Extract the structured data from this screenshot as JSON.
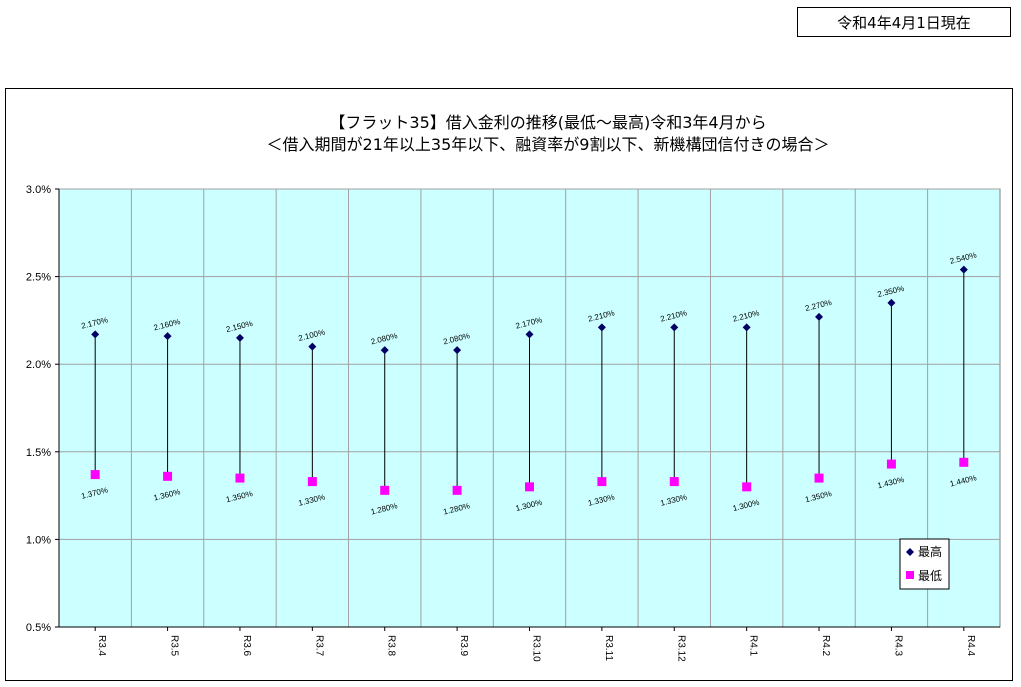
{
  "report_date": "令和4年4月1日現在",
  "chart_data": {
    "type": "scatter",
    "title_line1": "【フラット35】借入金利の推移(最低～最高)令和3年4月から",
    "title_line2": "＜借入期間が21年以上35年以下、融資率が9割以下、新機構団信付きの場合＞",
    "categories": [
      "R3.4",
      "R3.5",
      "R3.6",
      "R3.7",
      "R3.8",
      "R3.9",
      "R3.10",
      "R3.11",
      "R3.12",
      "R4.1",
      "R4.2",
      "R4.3",
      "R4.4"
    ],
    "series": [
      {
        "name": "最高",
        "color": "#000066",
        "marker": "diamond",
        "values": [
          2.17,
          2.16,
          2.15,
          2.1,
          2.08,
          2.08,
          2.17,
          2.21,
          2.21,
          2.21,
          2.27,
          2.35,
          2.54
        ],
        "labels": [
          "2.170%",
          "2.160%",
          "2.150%",
          "2.100%",
          "2.080%",
          "2.080%",
          "2.170%",
          "2.210%",
          "2.210%",
          "2.210%",
          "2.270%",
          "2.350%",
          "2.540%"
        ]
      },
      {
        "name": "最低",
        "color": "#ff00ff",
        "marker": "square",
        "values": [
          1.37,
          1.36,
          1.35,
          1.33,
          1.28,
          1.28,
          1.3,
          1.33,
          1.33,
          1.3,
          1.35,
          1.43,
          1.44
        ],
        "labels": [
          "1.370%",
          "1.360%",
          "1.350%",
          "1.330%",
          "1.280%",
          "1.280%",
          "1.300%",
          "1.330%",
          "1.330%",
          "1.300%",
          "1.350%",
          "1.430%",
          "1.440%"
        ]
      }
    ],
    "yticks": [
      0.5,
      1.0,
      1.5,
      2.0,
      2.5,
      3.0
    ],
    "ytick_labels": [
      "0.5%",
      "1.0%",
      "1.5%",
      "2.0%",
      "2.5%",
      "3.0%"
    ],
    "ylim": [
      0.5,
      3.0
    ],
    "grid": true,
    "plot_background": "#ccffff",
    "legend_position": "bottom-right"
  }
}
